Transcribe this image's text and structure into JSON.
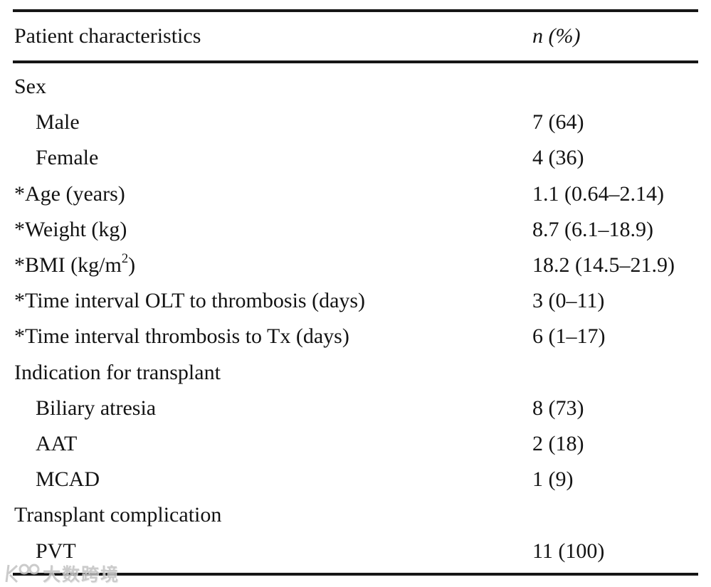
{
  "table": {
    "header": {
      "characteristics": "Patient characteristics",
      "n_percent": "n (%)"
    },
    "rows": [
      {
        "label": "Sex",
        "value": "",
        "indent": false
      },
      {
        "label": "Male",
        "value": "7 (64)",
        "indent": true
      },
      {
        "label": "Female",
        "value": "4 (36)",
        "indent": true
      },
      {
        "label": "*Age (years)",
        "value": "1.1 (0.64–2.14)",
        "indent": false
      },
      {
        "label": "*Weight (kg)",
        "value": "8.7 (6.1–18.9)",
        "indent": false
      },
      {
        "label": "*BMI (kg/m",
        "sup": "2",
        "label_suffix": ")",
        "value": "18.2 (14.5–21.9)",
        "indent": false
      },
      {
        "label": "*Time interval OLT to thrombosis (days)",
        "value": "3 (0–11)",
        "indent": false
      },
      {
        "label": "*Time interval thrombosis to Tx (days)",
        "value": "6 (1–17)",
        "indent": false
      },
      {
        "label": "Indication for transplant",
        "value": "",
        "indent": false
      },
      {
        "label": "Biliary atresia",
        "value": "8 (73)",
        "indent": true
      },
      {
        "label": "AAT",
        "value": "2 (18)",
        "indent": true
      },
      {
        "label": "MCAD",
        "value": "1 (9)",
        "indent": true
      },
      {
        "label": "Transplant complication",
        "value": "",
        "indent": false
      },
      {
        "label": "PVT",
        "value": "11 (100)",
        "indent": true
      }
    ]
  },
  "watermark": {
    "logo": "100",
    "text": "大数跨境"
  },
  "colors": {
    "background": "#ffffff",
    "text": "#131313",
    "rule": "#161616",
    "watermark": "#c3c3c3"
  }
}
